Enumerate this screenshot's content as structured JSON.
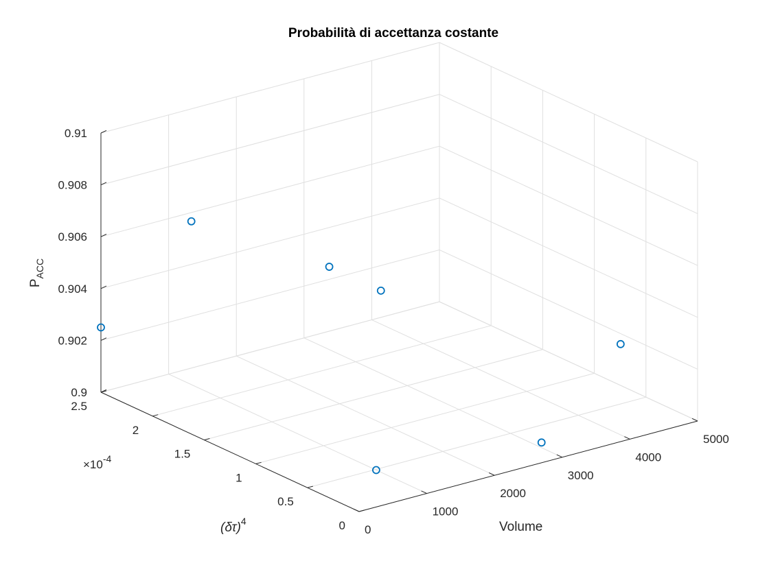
{
  "chart_data": {
    "type": "scatter",
    "title": "Probabilità di accettanza costante",
    "xlabel": "Volume",
    "ylabel_main": "(δτ)",
    "ylabel_exp": "4",
    "zlabel_main": "P",
    "zlabel_sub": "ACC",
    "y_multiplier": "×10",
    "y_multiplier_exp": "-4",
    "xlim": [
      0,
      5000
    ],
    "ylim": [
      0,
      2.5
    ],
    "zlim": [
      0.9,
      0.91
    ],
    "xticks": [
      0,
      1000,
      2000,
      3000,
      4000,
      5000
    ],
    "xtick_labels": [
      "0",
      "1000",
      "2000",
      "3000",
      "4000",
      "5000"
    ],
    "yticks": [
      0,
      0.5,
      1,
      1.5,
      2,
      2.5
    ],
    "ytick_labels": [
      "0",
      "0.5",
      "1",
      "1.5",
      "2",
      "2.5"
    ],
    "zticks": [
      0.9,
      0.902,
      0.904,
      0.906,
      0.908,
      0.91
    ],
    "ztick_labels": [
      "0.9",
      "0.902",
      "0.904",
      "0.906",
      "0.908",
      "0.91"
    ],
    "grid": true,
    "marker": "circle",
    "marker_color": "#0072bd",
    "points": [
      {
        "x": 0,
        "y": 2.5,
        "z": 0.9025
      },
      {
        "x": 1000,
        "y": 0.49,
        "z": 0.9
      },
      {
        "x": 1000,
        "y": 2.28,
        "z": 0.9063
      },
      {
        "x": 2000,
        "y": 1.6,
        "z": 0.9051
      },
      {
        "x": 2000,
        "y": 1.1,
        "z": 0.9051
      },
      {
        "x": 3000,
        "y": 0.2,
        "z": 0.9002
      },
      {
        "x": 4000,
        "y": 0.09,
        "z": 0.9035
      }
    ]
  }
}
